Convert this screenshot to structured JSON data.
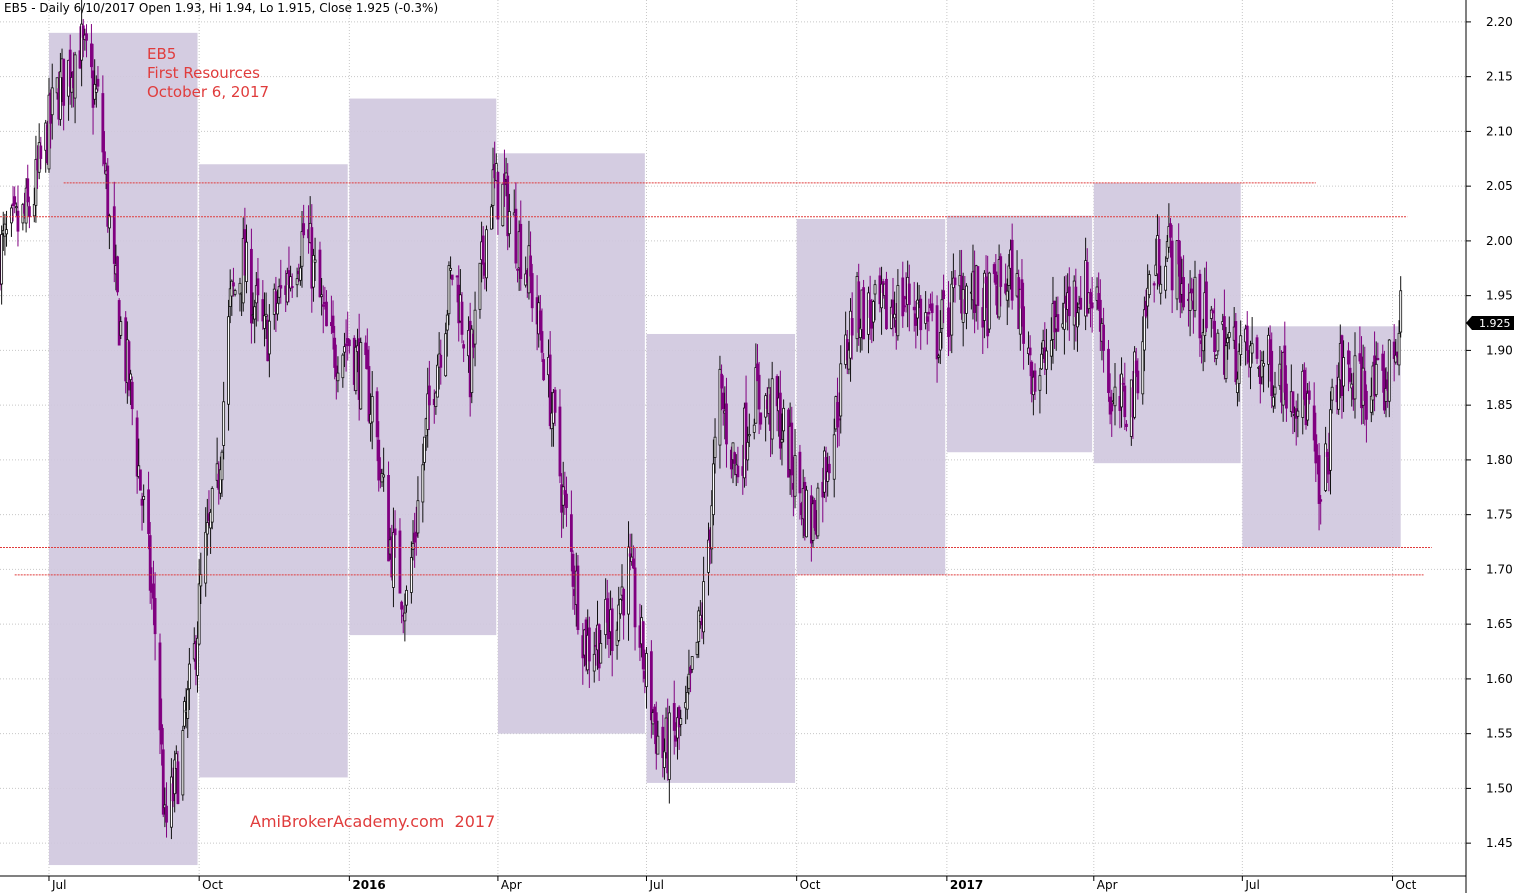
{
  "header": {
    "text": "EB5 - Daily 6/10/2017 Open 1.93, Hi 1.94, Lo 1.915, Close 1.925 (-0.3%)"
  },
  "annotation": {
    "line1": "EB5",
    "line2": "First Resources",
    "line3": "October 6, 2017"
  },
  "watermark": "AmiBrokerAcademy.com  2017",
  "colors": {
    "box_fill": "#cfc6de",
    "candle_up": "#111111",
    "candle_down": "#800080",
    "level_line": "#e03c3c",
    "grid": "#c8c8c8",
    "annotation": "#e03c3c"
  },
  "chart_data": {
    "type": "candlestick",
    "symbol": "EB5",
    "title": "EB5 - Daily 6/10/2017 Open 1.93, Hi 1.94, Lo 1.915, Close 1.925 (-0.3%)",
    "ylim": [
      1.42,
      2.22
    ],
    "y_ticks": [
      "2.20",
      "2.15",
      "2.10",
      "2.05",
      "2.00",
      "1.95",
      "1.90",
      "1.85",
      "1.80",
      "1.75",
      "1.70",
      "1.65",
      "1.60",
      "1.55",
      "1.50",
      "1.45"
    ],
    "x_ticks": [
      "Jul",
      "Oct",
      "2016",
      "Apr",
      "Jul",
      "Oct",
      "2017",
      "Apr",
      "Jul",
      "Oct"
    ],
    "bold_x_ticks": [
      "2016",
      "2017"
    ],
    "x_range": [
      "2015-06-01",
      "2017-11-15"
    ],
    "x_tick_dates": [
      "2015-07-01",
      "2015-10-01",
      "2016-01-01",
      "2016-04-01",
      "2016-07-01",
      "2016-10-01",
      "2017-01-01",
      "2017-04-01",
      "2017-07-01",
      "2017-10-01"
    ],
    "last_price": "1.925",
    "quarterly_ranges": [
      {
        "start": "2015-07-01",
        "end": "2015-09-30",
        "high": 2.19,
        "low": 1.43
      },
      {
        "start": "2015-10-01",
        "end": "2015-12-31",
        "high": 2.07,
        "low": 1.51
      },
      {
        "start": "2016-01-01",
        "end": "2016-03-31",
        "high": 2.13,
        "low": 1.64
      },
      {
        "start": "2016-04-01",
        "end": "2016-06-30",
        "high": 2.08,
        "low": 1.55
      },
      {
        "start": "2016-07-01",
        "end": "2016-09-30",
        "high": 1.915,
        "low": 1.505
      },
      {
        "start": "2016-10-01",
        "end": "2016-12-31",
        "high": 2.02,
        "low": 1.695
      },
      {
        "start": "2017-01-01",
        "end": "2017-03-31",
        "high": 2.023,
        "low": 1.807
      },
      {
        "start": "2017-04-01",
        "end": "2017-06-30",
        "high": 2.053,
        "low": 1.797
      },
      {
        "start": "2017-07-01",
        "end": "2017-10-06",
        "high": 1.922,
        "low": 1.72
      }
    ],
    "horizontal_levels": [
      {
        "price": 2.053,
        "start": "2015-07-10",
        "end": "2017-08-15"
      },
      {
        "price": 2.022,
        "start": "2015-06-01",
        "end": "2017-10-10"
      },
      {
        "price": 1.72,
        "start": "2015-06-01",
        "end": "2017-10-25"
      },
      {
        "price": 1.695,
        "start": "2015-06-10",
        "end": "2017-10-20"
      }
    ],
    "close_path": [
      [
        "2015-06-01",
        1.99
      ],
      [
        "2015-06-20",
        2.03
      ],
      [
        "2015-07-05",
        2.13
      ],
      [
        "2015-07-20",
        2.18
      ],
      [
        "2015-08-01",
        2.12
      ],
      [
        "2015-08-10",
        1.96
      ],
      [
        "2015-08-20",
        1.86
      ],
      [
        "2015-08-28",
        1.75
      ],
      [
        "2015-09-05",
        1.63
      ],
      [
        "2015-09-10",
        1.46
      ],
      [
        "2015-09-20",
        1.53
      ],
      [
        "2015-09-28",
        1.62
      ],
      [
        "2015-10-03",
        1.7
      ],
      [
        "2015-10-12",
        1.77
      ],
      [
        "2015-10-20",
        1.94
      ],
      [
        "2015-10-28",
        1.98
      ],
      [
        "2015-11-10",
        1.91
      ],
      [
        "2015-11-25",
        1.97
      ],
      [
        "2015-12-05",
        2.01
      ],
      [
        "2015-12-20",
        1.9
      ],
      [
        "2016-01-01",
        1.91
      ],
      [
        "2016-01-15",
        1.85
      ],
      [
        "2016-01-25",
        1.73
      ],
      [
        "2016-02-05",
        1.67
      ],
      [
        "2016-02-20",
        1.86
      ],
      [
        "2016-03-05",
        1.98
      ],
      [
        "2016-03-15",
        1.88
      ],
      [
        "2016-03-28",
        2.05
      ],
      [
        "2016-04-05",
        2.04
      ],
      [
        "2016-04-20",
        1.97
      ],
      [
        "2016-05-01",
        1.88
      ],
      [
        "2016-05-15",
        1.72
      ],
      [
        "2016-05-25",
        1.63
      ],
      [
        "2016-06-10",
        1.65
      ],
      [
        "2016-06-20",
        1.7
      ],
      [
        "2016-07-01",
        1.6
      ],
      [
        "2016-07-10",
        1.53
      ],
      [
        "2016-07-25",
        1.56
      ],
      [
        "2016-08-05",
        1.67
      ],
      [
        "2016-08-15",
        1.86
      ],
      [
        "2016-08-25",
        1.79
      ],
      [
        "2016-09-05",
        1.86
      ],
      [
        "2016-09-20",
        1.84
      ],
      [
        "2016-10-01",
        1.78
      ],
      [
        "2016-10-10",
        1.74
      ],
      [
        "2016-10-25",
        1.84
      ],
      [
        "2016-11-05",
        1.94
      ],
      [
        "2016-11-20",
        1.93
      ],
      [
        "2016-12-10",
        1.95
      ],
      [
        "2016-12-25",
        1.91
      ],
      [
        "2017-01-10",
        1.96
      ],
      [
        "2017-01-25",
        1.94
      ],
      [
        "2017-02-10",
        1.97
      ],
      [
        "2017-02-25",
        1.87
      ],
      [
        "2017-03-10",
        1.93
      ],
      [
        "2017-03-25",
        1.96
      ],
      [
        "2017-04-05",
        1.94
      ],
      [
        "2017-04-12",
        1.84
      ],
      [
        "2017-04-25",
        1.86
      ],
      [
        "2017-05-05",
        1.96
      ],
      [
        "2017-05-15",
        2.0
      ],
      [
        "2017-05-25",
        1.96
      ],
      [
        "2017-06-10",
        1.92
      ],
      [
        "2017-06-25",
        1.9
      ],
      [
        "2017-07-10",
        1.89
      ],
      [
        "2017-07-25",
        1.88
      ],
      [
        "2017-08-10",
        1.85
      ],
      [
        "2017-08-18",
        1.75
      ],
      [
        "2017-08-28",
        1.88
      ],
      [
        "2017-09-10",
        1.87
      ],
      [
        "2017-09-25",
        1.86
      ],
      [
        "2017-10-06",
        1.925
      ]
    ]
  }
}
